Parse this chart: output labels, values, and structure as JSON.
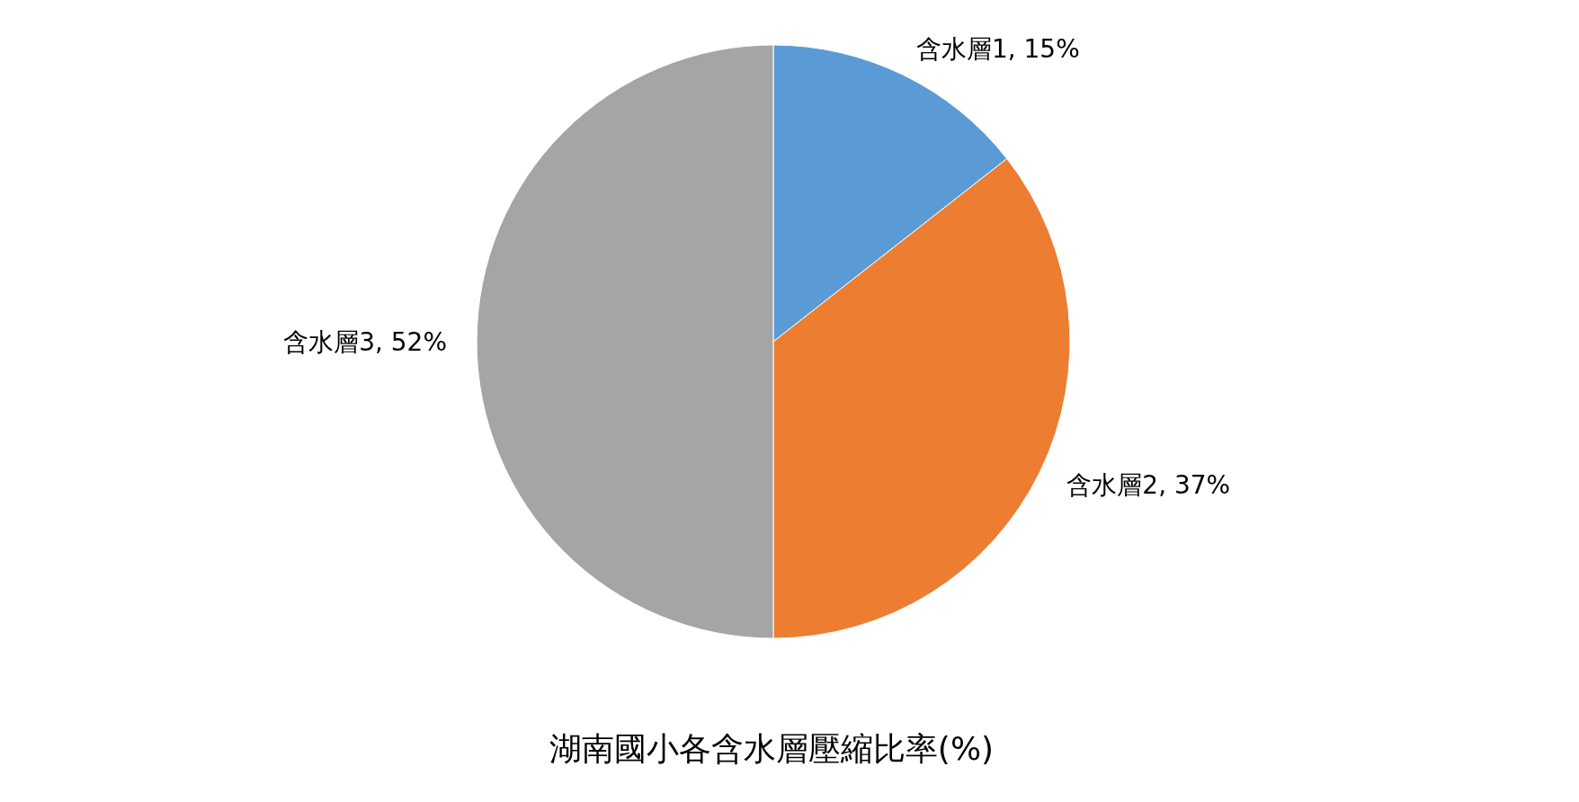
{
  "chart_data": {
    "type": "pie",
    "title": "湖南國小各含水層壓縮比率(%)",
    "categories": [
      "含水層1",
      "含水層2",
      "含水層3"
    ],
    "values": [
      15,
      37,
      52
    ],
    "colors": [
      "#5b9bd5",
      "#ed7d31",
      "#a5a5a5"
    ],
    "value_labels": [
      "15%",
      "37%",
      "52%"
    ]
  }
}
